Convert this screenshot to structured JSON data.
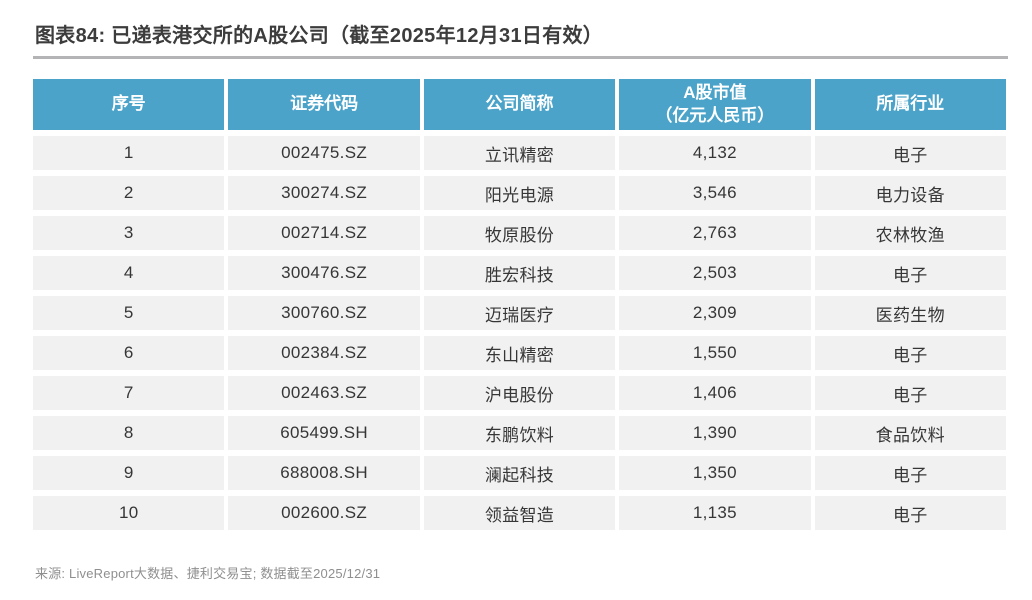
{
  "title": "图表84: 已递表港交所的A股公司（截至2025年12月31日有效）",
  "source_note": "来源: LiveReport大数据、捷利交易宝; 数据截至2025/12/31",
  "chart_data": {
    "type": "table",
    "title": "图表84: 已递表港交所的A股公司（截至2025年12月31日有效）",
    "columns": [
      "序号",
      "证券代码",
      "公司简称",
      "A股市值\n（亿元人民币）",
      "所属行业"
    ],
    "rows": [
      [
        "1",
        "002475.SZ",
        "立讯精密",
        "4,132",
        "电子"
      ],
      [
        "2",
        "300274.SZ",
        "阳光电源",
        "3,546",
        "电力设备"
      ],
      [
        "3",
        "002714.SZ",
        "牧原股份",
        "2,763",
        "农林牧渔"
      ],
      [
        "4",
        "300476.SZ",
        "胜宏科技",
        "2,503",
        "电子"
      ],
      [
        "5",
        "300760.SZ",
        "迈瑞医疗",
        "2,309",
        "医药生物"
      ],
      [
        "6",
        "002384.SZ",
        "东山精密",
        "1,550",
        "电子"
      ],
      [
        "7",
        "002463.SZ",
        "沪电股份",
        "1,406",
        "电子"
      ],
      [
        "8",
        "605499.SH",
        "东鹏饮料",
        "1,390",
        "食品饮料"
      ],
      [
        "9",
        "688008.SH",
        "澜起科技",
        "1,350",
        "电子"
      ],
      [
        "10",
        "002600.SZ",
        "领益智造",
        "1,135",
        "电子"
      ]
    ],
    "layout": {
      "header_position": "top",
      "grid": "gapped-cells",
      "column_alignment": "center"
    }
  },
  "colors": {
    "header_bg": "#4ba3c9",
    "header_text": "#ffffff",
    "row_bg": "#f1f1f1",
    "cell_text": "#363636",
    "title_text": "#3c3c3c",
    "divider": "#b4b4b7",
    "source_text": "#8f8f8f",
    "page_bg": "#ffffff"
  }
}
